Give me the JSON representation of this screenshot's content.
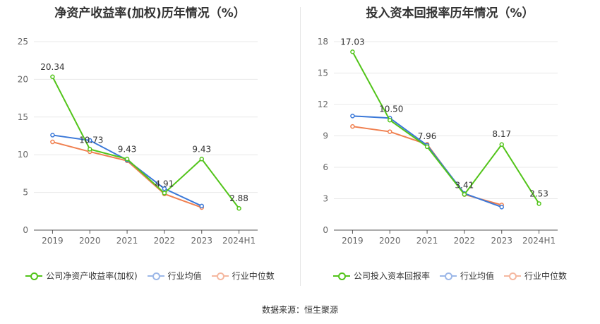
{
  "footer": {
    "source": "数据来源：恒生聚源"
  },
  "colors": {
    "company": "#52c41a",
    "avg": "#3a78d8",
    "median": "#f08050",
    "grid": "#e8e8e8",
    "axis": "#555555"
  },
  "chart_data": [
    {
      "type": "line",
      "title": "净资产收益率(加权)历年情况（%）",
      "categories": [
        "2019",
        "2020",
        "2021",
        "2022",
        "2023",
        "2024H1"
      ],
      "ylim": [
        0,
        25
      ],
      "yticks": [
        0,
        5,
        10,
        15,
        20,
        25
      ],
      "grid": true,
      "legend_position": "bottom",
      "series": [
        {
          "name": "公司净资产收益率(加权)",
          "color": "#52c41a",
          "values": [
            20.34,
            10.73,
            9.43,
            4.91,
            9.43,
            2.88
          ],
          "labels": [
            "20.34",
            "10.73",
            "9.43",
            "4.91",
            "9.43",
            "2.88"
          ]
        },
        {
          "name": "行业均值",
          "color": "#3a78d8",
          "values": [
            12.6,
            11.9,
            9.3,
            5.5,
            3.2,
            null
          ]
        },
        {
          "name": "行业中位数",
          "color": "#f08050",
          "values": [
            11.7,
            10.4,
            9.2,
            4.8,
            3.0,
            null
          ]
        }
      ]
    },
    {
      "type": "line",
      "title": "投入资本回报率历年情况（%）",
      "categories": [
        "2019",
        "2020",
        "2021",
        "2022",
        "2023",
        "2024H1"
      ],
      "ylim": [
        0,
        18
      ],
      "yticks": [
        0,
        3,
        6,
        9,
        12,
        15,
        18
      ],
      "grid": true,
      "legend_position": "bottom",
      "series": [
        {
          "name": "公司投入资本回报率",
          "color": "#52c41a",
          "values": [
            17.03,
            10.5,
            7.96,
            3.41,
            8.17,
            2.53
          ],
          "labels": [
            "17.03",
            "10.50",
            "7.96",
            "3.41",
            "8.17",
            "2.53"
          ]
        },
        {
          "name": "行业均值",
          "color": "#3a78d8",
          "values": [
            10.9,
            10.7,
            8.1,
            3.5,
            2.2,
            null
          ]
        },
        {
          "name": "行业中位数",
          "color": "#f08050",
          "values": [
            9.9,
            9.4,
            8.2,
            3.4,
            2.4,
            null
          ]
        }
      ]
    }
  ]
}
